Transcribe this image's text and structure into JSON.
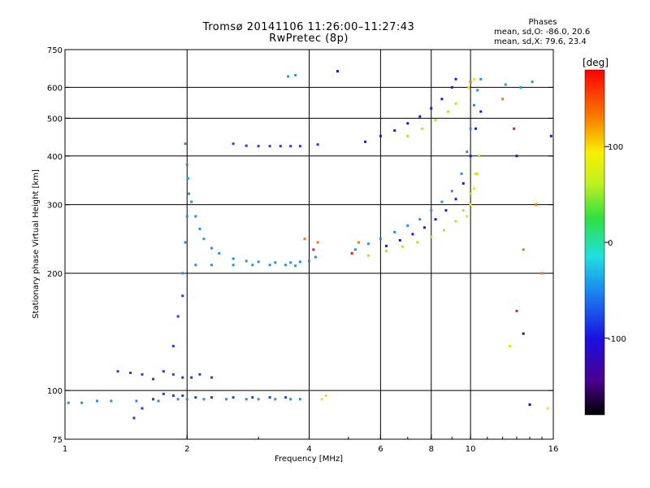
{
  "title_line1": "Tromsø 20141106 11:26:00–11:27:43",
  "title_line2": "RwPretec (8p)",
  "stats": {
    "heading": "Phases",
    "line_o": "mean, sd,O: -86.0, 20.6",
    "line_x": "mean, sd,X:  79.6, 23.4"
  },
  "chart_data": {
    "type": "scatter",
    "title": "Tromsø 20141106 11:26:00–11:27:43",
    "subtitle": "RwPretec (8p)",
    "xlabel": "Frequency [MHz]",
    "ylabel": "Stationary phase Virtual Height [km]",
    "x_scale": "log",
    "y_scale": "log",
    "xlim": [
      1,
      16
    ],
    "ylim": [
      75,
      750
    ],
    "x_ticks": [
      1,
      2,
      4,
      6,
      8,
      10,
      16
    ],
    "y_ticks": [
      75,
      100,
      200,
      300,
      400,
      500,
      600,
      750
    ],
    "x_grid": [
      2,
      4,
      6,
      8,
      10
    ],
    "y_grid": [
      100,
      200,
      300,
      400,
      500,
      600
    ],
    "grid": true,
    "colorbar": {
      "label": "[deg]",
      "range": [
        -180,
        180
      ],
      "ticks": [
        100,
        0,
        -100
      ]
    },
    "series": [
      {
        "color": "#2a8ee0",
        "points": [
          [
            1.02,
            93
          ],
          [
            1.1,
            93
          ],
          [
            1.2,
            94
          ],
          [
            1.3,
            94
          ],
          [
            1.5,
            94
          ],
          [
            1.7,
            94
          ],
          [
            1.9,
            95
          ],
          [
            2.0,
            95
          ],
          [
            2.2,
            95
          ],
          [
            2.5,
            95
          ],
          [
            2.8,
            95
          ],
          [
            3.0,
            95
          ],
          [
            3.3,
            95
          ],
          [
            3.6,
            95
          ],
          [
            3.8,
            95
          ]
        ]
      },
      {
        "color": "#1f3fd6",
        "points": [
          [
            1.35,
            112
          ],
          [
            1.45,
            111
          ],
          [
            1.55,
            110
          ],
          [
            1.65,
            107
          ],
          [
            1.75,
            112
          ],
          [
            1.85,
            110
          ],
          [
            1.95,
            108
          ],
          [
            2.05,
            108
          ],
          [
            2.15,
            110
          ],
          [
            2.3,
            108
          ],
          [
            1.85,
            130
          ],
          [
            1.9,
            155
          ],
          [
            1.95,
            175
          ],
          [
            1.48,
            85
          ],
          [
            1.55,
            90
          ],
          [
            1.65,
            95
          ],
          [
            1.75,
            98
          ],
          [
            1.85,
            97
          ],
          [
            1.95,
            97
          ],
          [
            2.1,
            96
          ],
          [
            2.3,
            96
          ],
          [
            2.6,
            96
          ],
          [
            2.9,
            96
          ],
          [
            3.2,
            96
          ],
          [
            3.5,
            96
          ]
        ]
      },
      {
        "color": "#2a8ee0",
        "points": [
          [
            1.95,
            200
          ],
          [
            1.98,
            240
          ],
          [
            2.0,
            280
          ],
          [
            2.02,
            320
          ],
          [
            2.05,
            305
          ],
          [
            2.1,
            280
          ],
          [
            2.15,
            260
          ],
          [
            2.2,
            245
          ],
          [
            2.3,
            232
          ],
          [
            2.4,
            225
          ],
          [
            2.6,
            218
          ],
          [
            2.8,
            215
          ],
          [
            3.0,
            214
          ],
          [
            3.3,
            213
          ],
          [
            3.6,
            213
          ],
          [
            3.8,
            214
          ],
          [
            2.1,
            210
          ],
          [
            2.3,
            210
          ],
          [
            2.6,
            210
          ],
          [
            2.9,
            210
          ],
          [
            3.2,
            210
          ],
          [
            3.5,
            210
          ],
          [
            3.7,
            209
          ],
          [
            2.0,
            380
          ],
          [
            1.98,
            430
          ],
          [
            2.01,
            350
          ],
          [
            4.0,
            215
          ],
          [
            4.15,
            220
          ]
        ]
      },
      {
        "color": "#1f3fd6",
        "points": [
          [
            2.6,
            430
          ],
          [
            2.8,
            425
          ],
          [
            3.0,
            424
          ],
          [
            3.2,
            424
          ],
          [
            3.4,
            424
          ],
          [
            3.6,
            424
          ],
          [
            3.8,
            424
          ],
          [
            4.2,
            428
          ]
        ]
      },
      {
        "color": "#2a8ee0",
        "points": [
          [
            5.2,
            230
          ],
          [
            5.6,
            238
          ],
          [
            6.0,
            245
          ],
          [
            6.5,
            255
          ],
          [
            7.0,
            265
          ],
          [
            7.5,
            275
          ],
          [
            8.0,
            290
          ],
          [
            8.5,
            305
          ],
          [
            9.0,
            325
          ],
          [
            9.5,
            360
          ],
          [
            9.8,
            410
          ],
          [
            10.0,
            470
          ],
          [
            10.2,
            540
          ],
          [
            10.4,
            590
          ],
          [
            10.6,
            630
          ]
        ]
      },
      {
        "color": "#2418c8",
        "points": [
          [
            6.2,
            235
          ],
          [
            6.7,
            243
          ],
          [
            7.2,
            252
          ],
          [
            7.7,
            262
          ],
          [
            8.2,
            275
          ],
          [
            8.7,
            290
          ],
          [
            9.2,
            310
          ],
          [
            9.6,
            340
          ],
          [
            10.0,
            400
          ],
          [
            10.3,
            470
          ],
          [
            10.6,
            520
          ],
          [
            5.5,
            435
          ],
          [
            6.0,
            450
          ],
          [
            6.5,
            465
          ],
          [
            7.0,
            485
          ],
          [
            7.5,
            505
          ],
          [
            8.0,
            530
          ],
          [
            8.5,
            560
          ],
          [
            9.0,
            600
          ],
          [
            9.2,
            630
          ]
        ]
      },
      {
        "color": "#a8e83a",
        "points": [
          [
            5.6,
            222
          ],
          [
            6.2,
            228
          ],
          [
            6.8,
            234
          ],
          [
            7.4,
            240
          ],
          [
            8.0,
            248
          ],
          [
            8.6,
            258
          ],
          [
            9.2,
            272
          ],
          [
            9.6,
            290
          ],
          [
            10.0,
            320
          ],
          [
            10.3,
            360
          ],
          [
            10.5,
            400
          ],
          [
            7.0,
            450
          ],
          [
            7.6,
            470
          ],
          [
            8.2,
            495
          ],
          [
            8.8,
            520
          ],
          [
            9.2,
            545
          ]
        ]
      },
      {
        "color": "#f0e020",
        "points": [
          [
            9.8,
            280
          ],
          [
            10.0,
            300
          ],
          [
            10.2,
            330
          ],
          [
            10.4,
            360
          ],
          [
            9.9,
            600
          ],
          [
            10.2,
            630
          ],
          [
            4.3,
            95
          ],
          [
            4.4,
            97
          ],
          [
            12.5,
            130
          ],
          [
            15.5,
            90
          ]
        ]
      },
      {
        "color": "#e87818",
        "points": [
          [
            3.9,
            245
          ],
          [
            4.2,
            240
          ],
          [
            5.3,
            240
          ],
          [
            10.0,
            620
          ],
          [
            12.0,
            560
          ],
          [
            13.5,
            230
          ],
          [
            14.5,
            300
          ],
          [
            15.0,
            200
          ]
        ]
      },
      {
        "color": "#e02020",
        "points": [
          [
            4.1,
            230
          ],
          [
            5.1,
            225
          ],
          [
            12.8,
            470
          ],
          [
            13.0,
            160
          ]
        ]
      },
      {
        "color": "#20a0c0",
        "points": [
          [
            3.55,
            640
          ],
          [
            3.7,
            645
          ],
          [
            12.2,
            610
          ],
          [
            13.3,
            600
          ],
          [
            14.2,
            620
          ]
        ]
      },
      {
        "color": "#1818a0",
        "points": [
          [
            4.7,
            660
          ],
          [
            13.0,
            400
          ],
          [
            13.5,
            140
          ],
          [
            14.0,
            92
          ],
          [
            15.8,
            450
          ]
        ]
      }
    ]
  }
}
